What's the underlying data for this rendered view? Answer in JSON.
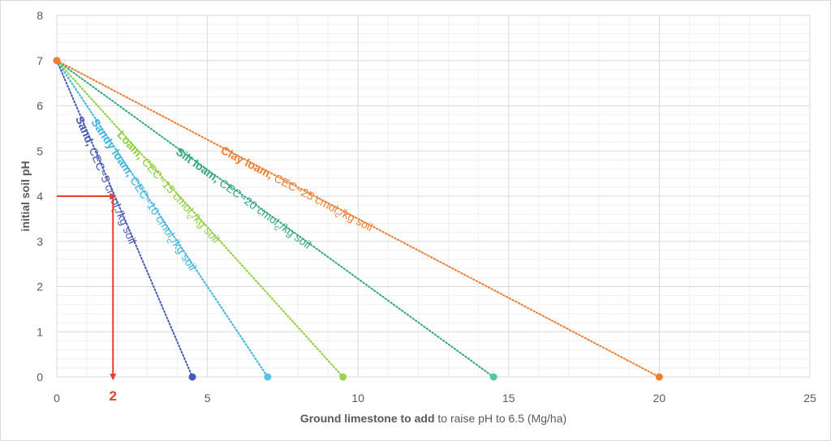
{
  "chart_data": {
    "type": "line",
    "xlabel_bold": "Ground limestone to add",
    "xlabel_rest": " to raise pH to 6.5 (Mg/ha)",
    "ylabel": "initial soil pH",
    "xlim": [
      0,
      25
    ],
    "ylim": [
      0,
      8
    ],
    "xticks": [
      "0",
      "5",
      "10",
      "15",
      "20",
      "25"
    ],
    "yticks": [
      "0",
      "1",
      "2",
      "3",
      "4",
      "5",
      "6",
      "7",
      "8"
    ],
    "grid": true,
    "start_point": {
      "x": 0,
      "y": 7,
      "color": "#ed7d31"
    },
    "series": [
      {
        "name_bold": "Sand,",
        "name_rest": " CEC~5 cmol",
        "sub": "c",
        "tail": "/kg soil",
        "color": "#4559b4",
        "x": [
          0,
          4.5
        ],
        "y": [
          7,
          0
        ]
      },
      {
        "name_bold": "Sandy loam,",
        "name_rest": " CEC~10 cmol",
        "sub": "c",
        "tail": "/kg soil",
        "color": "#3bb4e0",
        "x": [
          0,
          7
        ],
        "y": [
          7,
          0
        ]
      },
      {
        "name_bold": "Loam,",
        "name_rest": " CEC~15 cmol",
        "sub": "c",
        "tail": "/kg soil",
        "color": "#8dcf3c",
        "x": [
          0,
          9.5
        ],
        "y": [
          7,
          0
        ]
      },
      {
        "name_bold": "Silt loam,",
        "name_rest": " CEC~20 cmol",
        "sub": "c",
        "tail": "/kg soil",
        "color": "#33a77e",
        "x": [
          0,
          14.5
        ],
        "y": [
          7,
          0
        ]
      },
      {
        "name_bold": "Clay loam,",
        "name_rest": " CEC~25 cmol",
        "sub": "c",
        "tail": "/kg soil",
        "color": "#ed7d31",
        "x": [
          0,
          20
        ],
        "y": [
          7,
          0
        ]
      }
    ],
    "endpoint_colors": [
      "#4159b8",
      "#56c2ea",
      "#9ad44a",
      "#4fcc9e",
      "#f07e2e"
    ],
    "annotation": {
      "color": "#e8402a",
      "ph": 4,
      "x_value": 2,
      "label": "2"
    }
  }
}
